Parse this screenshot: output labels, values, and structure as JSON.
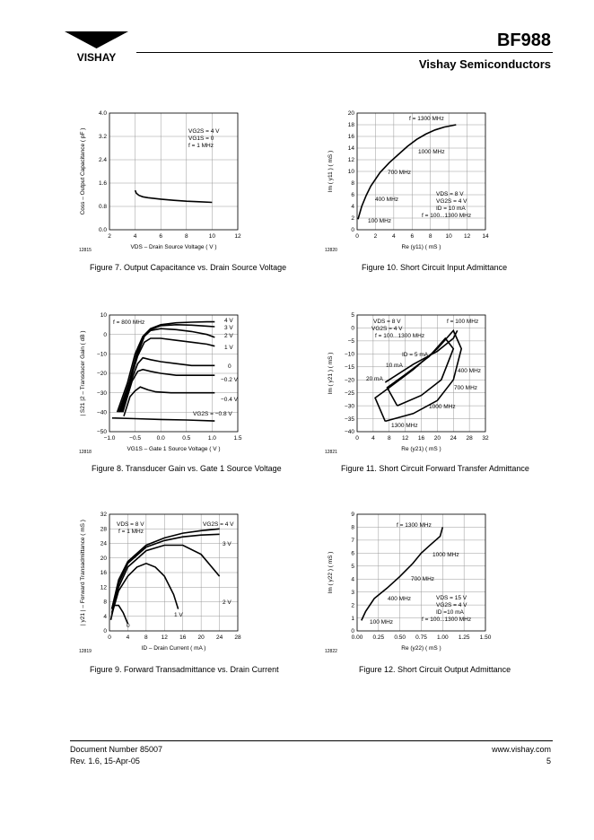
{
  "header": {
    "part_number": "BF988",
    "company": "Vishay Semiconductors",
    "logo_text": "VISHAY"
  },
  "footer": {
    "doc_number": "Document Number 85007",
    "revision": "Rev. 1.6, 15-Apr-05",
    "website": "www.vishay.com",
    "page": "5"
  },
  "chart_data": [
    {
      "id": "fig7",
      "type": "line",
      "figure_code": "12815",
      "title": "Figure 7. Output Capacitance vs. Drain Source Voltage",
      "xlabel": "VDS – Drain Source Voltage ( V )",
      "ylabel": "Coss – Output Capacitance ( pF )",
      "xlim": [
        2,
        12
      ],
      "ylim": [
        0,
        4
      ],
      "xticks": [
        "2",
        "4",
        "6",
        "8",
        "10",
        "12"
      ],
      "yticks": [
        "0.0",
        "0.8",
        "1.6",
        "2.4",
        "3.2",
        "4.0"
      ],
      "annotations": [
        "VG2S = 4 V",
        "VG1S = 0",
        "f = 1 MHz"
      ],
      "series": [
        {
          "name": "Coss",
          "x": [
            4,
            4.1,
            4.3,
            4.6,
            5,
            6,
            7,
            8,
            9,
            10
          ],
          "y": [
            1.35,
            1.25,
            1.18,
            1.13,
            1.1,
            1.05,
            1.01,
            0.98,
            0.96,
            0.94
          ]
        }
      ]
    },
    {
      "id": "fig10",
      "type": "line",
      "figure_code": "12820",
      "title": "Figure 10. Short Circuit Input Admittance",
      "xlabel": "Re (y11) ( mS )",
      "ylabel": "Im ( y11 ) ( mS )",
      "xlim": [
        0,
        14
      ],
      "ylim": [
        0,
        20
      ],
      "xticks": [
        "0",
        "2",
        "4",
        "6",
        "8",
        "10",
        "12",
        "14"
      ],
      "yticks": [
        "0",
        "2",
        "4",
        "6",
        "8",
        "10",
        "12",
        "14",
        "16",
        "18",
        "20"
      ],
      "annotations": [
        "VDS = 8 V",
        "VG2S = 4 V",
        "ID = 10 mA",
        "f = 100...1300 MHz"
      ],
      "point_labels": [
        "f = 1300 MHz",
        "1000 MHz",
        "700 MHz",
        "400 MHz",
        "100 MHz"
      ],
      "series": [
        {
          "name": "y11",
          "x": [
            0.1,
            0.5,
            1,
            1.5,
            2.5,
            3.5,
            4.5,
            5.5,
            6.5,
            7.5,
            8.5,
            9.5,
            10.8
          ],
          "y": [
            1.8,
            4,
            5.9,
            7.5,
            9.8,
            11.5,
            12.9,
            14.3,
            15.5,
            16.4,
            17.1,
            17.6,
            18
          ]
        }
      ]
    },
    {
      "id": "fig8",
      "type": "line",
      "figure_code": "12818",
      "title": "Figure 8. Transducer Gain vs. Gate 1 Source Voltage",
      "xlabel": "VG1S – Gate 1 Source Voltage ( V )",
      "ylabel": "| S21 |2 – Transducer Gain ( dB )",
      "xlim": [
        -1.0,
        1.5
      ],
      "ylim": [
        -50,
        10
      ],
      "xticks": [
        "−1.0",
        "−0.5",
        "0.0",
        "0.5",
        "1.0",
        "1.5"
      ],
      "yticks": [
        "−50",
        "−40",
        "−30",
        "−20",
        "−10",
        "0",
        "10"
      ],
      "annotations": [
        "f = 800 MHz",
        "VG2S = −0.8 V"
      ],
      "curve_labels": [
        "4 V",
        "3 V",
        "2 V",
        "1 V",
        "0",
        "−0.2 V",
        "−0.4 V"
      ],
      "series": [
        {
          "name": "4 V",
          "x": [
            -0.85,
            -0.65,
            -0.5,
            -0.35,
            -0.2,
            0,
            0.3,
            0.6,
            0.9,
            1.05
          ],
          "y": [
            -40,
            -25,
            -10,
            -1,
            3,
            5,
            6,
            6.3,
            6.5,
            6.5
          ]
        },
        {
          "name": "3 V",
          "x": [
            -0.82,
            -0.62,
            -0.47,
            -0.33,
            -0.2,
            0,
            0.3,
            0.6,
            0.9,
            1.05
          ],
          "y": [
            -40,
            -25,
            -10,
            -1,
            2.5,
            4.5,
            5,
            4.8,
            4.3,
            4
          ]
        },
        {
          "name": "2 V",
          "x": [
            -0.8,
            -0.6,
            -0.45,
            -0.32,
            -0.2,
            0,
            0.3,
            0.6,
            0.9,
            1.05
          ],
          "y": [
            -40,
            -24,
            -10,
            -1,
            2,
            3,
            2.5,
            1.5,
            0,
            -1.5
          ]
        },
        {
          "name": "1 V",
          "x": [
            -0.78,
            -0.6,
            -0.45,
            -0.32,
            -0.2,
            0,
            0.3,
            0.6,
            0.9,
            1.05
          ],
          "y": [
            -40,
            -24,
            -11,
            -4,
            -2,
            -2,
            -3,
            -4,
            -5,
            -6
          ]
        },
        {
          "name": "0",
          "x": [
            -0.76,
            -0.58,
            -0.45,
            -0.35,
            -0.2,
            0,
            0.3,
            0.6,
            0.9,
            1.05
          ],
          "y": [
            -40,
            -24,
            -15,
            -12,
            -13,
            -14,
            -15,
            -16,
            -16,
            -16
          ]
        },
        {
          "name": "−0.2 V",
          "x": [
            -0.74,
            -0.56,
            -0.45,
            -0.35,
            -0.2,
            0,
            0.3,
            0.6,
            0.9,
            1.05
          ],
          "y": [
            -40,
            -24,
            -19,
            -18,
            -19,
            -20,
            -21,
            -21,
            -21,
            -21
          ]
        },
        {
          "name": "−0.4 V",
          "x": [
            -0.72,
            -0.6,
            -0.5,
            -0.4,
            -0.25,
            -0.1,
            0.2,
            0.5,
            0.9,
            1.05
          ],
          "y": [
            -42,
            -32,
            -29,
            -27,
            -28.5,
            -29.5,
            -30,
            -30,
            -30,
            -30
          ]
        },
        {
          "name": "−0.8 V",
          "x": [
            -0.95,
            -0.5,
            0,
            0.5,
            1.05
          ],
          "y": [
            -43,
            -43.3,
            -43.7,
            -44,
            -44.5
          ]
        }
      ]
    },
    {
      "id": "fig11",
      "type": "line",
      "figure_code": "12821",
      "title": "Figure 11. Short Circuit Forward Transfer Admittance",
      "xlabel": "Re (y21) ( mS )",
      "ylabel": "Im ( y21 ) ( mS )",
      "xlim": [
        0,
        32
      ],
      "ylim": [
        -40,
        5
      ],
      "xticks": [
        "0",
        "4",
        "8",
        "12",
        "16",
        "20",
        "24",
        "28",
        "32"
      ],
      "yticks": [
        "−40",
        "−35",
        "−30",
        "−25",
        "−20",
        "−15",
        "−10",
        "−5",
        "0",
        "5"
      ],
      "annotations": [
        "VDS = 8 V",
        "VG2S = 4 V",
        "f = 100...1300 MHz",
        "f = 100 MHz"
      ],
      "point_labels": [
        "ID = 5 mA",
        "10 mA",
        "20 mA",
        "400 MHz",
        "700 MHz",
        "1000 MHz",
        "1300 MHz"
      ],
      "series": [
        {
          "name": "outer",
          "x": [
            7,
            14,
            20,
            24,
            26,
            24,
            20,
            14,
            8,
            4.5,
            7
          ],
          "y": [
            -36,
            -33,
            -28,
            -20,
            -8,
            -1,
            -8,
            -16,
            -23,
            -27,
            -36
          ]
        },
        {
          "name": "inner",
          "x": [
            10,
            16,
            21,
            24,
            22,
            18,
            12,
            7.5,
            10
          ],
          "y": [
            -30,
            -26,
            -20,
            -8,
            -4,
            -11,
            -18,
            -23,
            -30
          ]
        },
        {
          "name": "5 mA",
          "x": [
            7,
            14,
            20,
            24,
            25
          ],
          "y": [
            -21,
            -14,
            -9,
            -4,
            -1
          ]
        }
      ]
    },
    {
      "id": "fig9",
      "type": "line",
      "figure_code": "12819",
      "title": "Figure 9. Forward Transadmittance vs. Drain Current",
      "xlabel": "ID – Drain Current ( mA )",
      "ylabel": "| y21 | – Forward Transadmittance ( mS )",
      "xlim": [
        0,
        28
      ],
      "ylim": [
        0,
        32
      ],
      "xticks": [
        "0",
        "4",
        "8",
        "12",
        "16",
        "20",
        "24",
        "28"
      ],
      "yticks": [
        "0",
        "4",
        "8",
        "12",
        "16",
        "20",
        "24",
        "28",
        "32"
      ],
      "annotations": [
        "VDS = 8 V",
        "f = 1 MHz",
        "VG2S = 4 V"
      ],
      "curve_labels": [
        "3 V",
        "2 V",
        "1 V",
        "0"
      ],
      "series": [
        {
          "name": "4 V",
          "x": [
            0.5,
            2,
            4,
            8,
            12,
            16,
            20,
            24
          ],
          "y": [
            6,
            14,
            19,
            23.5,
            25.5,
            26.8,
            27.5,
            28
          ]
        },
        {
          "name": "3 V",
          "x": [
            0.5,
            2,
            4,
            8,
            12,
            16,
            20,
            24
          ],
          "y": [
            6,
            13,
            18.5,
            23,
            24.8,
            25.8,
            26.3,
            26.5
          ]
        },
        {
          "name": "2 V",
          "x": [
            0.5,
            2,
            4,
            8,
            12,
            16,
            20,
            24
          ],
          "y": [
            5,
            12,
            17.5,
            22,
            23.5,
            23.5,
            21,
            15
          ]
        },
        {
          "name": "1 V",
          "x": [
            0.5,
            2,
            4,
            6,
            8,
            10,
            12,
            14,
            15
          ],
          "y": [
            4.5,
            11,
            15,
            17.5,
            18.5,
            17.5,
            15,
            10,
            6
          ]
        },
        {
          "name": "0",
          "x": [
            0.3,
            1,
            2,
            3,
            4
          ],
          "y": [
            3,
            7,
            7,
            5,
            2
          ]
        }
      ]
    },
    {
      "id": "fig12",
      "type": "line",
      "figure_code": "12822",
      "title": "Figure 12. Short Circuit Output Admittance",
      "xlabel": "Re (y22) ( mS )",
      "ylabel": "Im ( y22 ) ( mS )",
      "xlim": [
        0,
        1.5
      ],
      "ylim": [
        0,
        9
      ],
      "xticks": [
        "0.00",
        "0.25",
        "0.50",
        "0.75",
        "1.00",
        "1.25",
        "1.50"
      ],
      "yticks": [
        "0",
        "1",
        "2",
        "3",
        "4",
        "5",
        "6",
        "7",
        "8",
        "9"
      ],
      "annotations": [
        "VDS = 15 V",
        "VG2S = 4 V",
        "ID =10 mA",
        "f = 100...1300 MHz"
      ],
      "point_labels": [
        "f = 1300 MHz",
        "1000 MHz",
        "700 MHz",
        "400 MHz",
        "100 MHz"
      ],
      "series": [
        {
          "name": "y22",
          "x": [
            0.05,
            0.1,
            0.2,
            0.35,
            0.5,
            0.65,
            0.75,
            0.85,
            0.97,
            1.0
          ],
          "y": [
            0.8,
            1.5,
            2.5,
            3.3,
            4.2,
            5.2,
            6,
            6.6,
            7.3,
            8
          ]
        }
      ]
    }
  ]
}
